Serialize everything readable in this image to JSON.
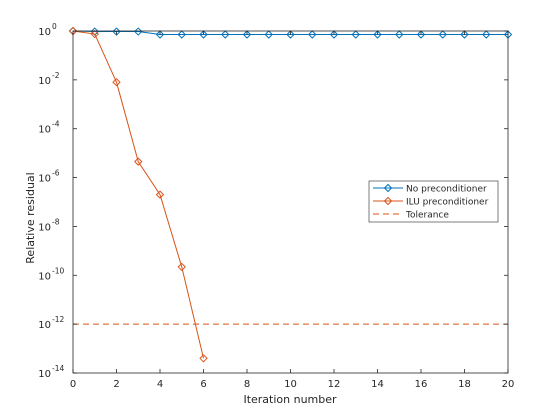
{
  "chart_data": {
    "type": "line",
    "title": "",
    "xlabel": "Iteration number",
    "ylabel": "Relative residual",
    "xlim": [
      0,
      20
    ],
    "ylim_log10": [
      -14,
      0
    ],
    "y_scale": "log",
    "x_ticks": [
      "0",
      "2",
      "4",
      "6",
      "8",
      "10",
      "12",
      "14",
      "16",
      "18",
      "20"
    ],
    "y_tick_exponents": [
      "0",
      "-2",
      "-4",
      "-6",
      "-8",
      "-10",
      "-12",
      "-14"
    ],
    "y_tick_base": "10",
    "grid": false,
    "legend_position": "right",
    "series": [
      {
        "name": "No preconditioner",
        "color": "#0072BD",
        "marker": "diamond",
        "x": [
          0,
          1,
          2,
          3,
          4,
          5,
          6,
          7,
          8,
          9,
          10,
          11,
          12,
          13,
          14,
          15,
          16,
          17,
          18,
          19,
          20
        ],
        "y": [
          1,
          0.95,
          0.95,
          0.95,
          0.72,
          0.72,
          0.72,
          0.72,
          0.72,
          0.72,
          0.72,
          0.72,
          0.72,
          0.72,
          0.72,
          0.72,
          0.72,
          0.72,
          0.72,
          0.72,
          0.72
        ]
      },
      {
        "name": "ILU preconditioner",
        "color": "#D95319",
        "marker": "diamond",
        "x": [
          0,
          1,
          2,
          3,
          4,
          5,
          6
        ],
        "y": [
          1,
          0.75,
          0.008,
          4.5e-06,
          2e-07,
          2.2e-10,
          4e-14
        ]
      },
      {
        "name": "Tolerance",
        "color": "#D95319",
        "dash": true,
        "x": [
          0,
          20
        ],
        "y": [
          1e-12,
          1e-12
        ]
      }
    ]
  }
}
